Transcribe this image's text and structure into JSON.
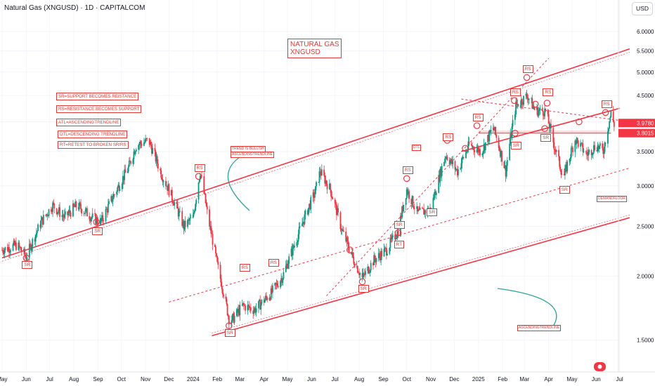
{
  "header": {
    "title": "Natural Gas (XNGUSD) · 1D · CAPITALCOM",
    "currency": "USD"
  },
  "annotations": {
    "title_line1": "NATURAL GAS",
    "title_line2": "XNGUSD",
    "legend": [
      "SR=SUPPORT BECOMES REISTANCE",
      "RS=RESISTANCE BECOMES SUPPORT",
      "ATL=ASCENDINGTRENDLINE",
      "DTL=DESCENDING TRENDLINE",
      "RT=RETEST TO BROKEN SR/RS"
    ],
    "trend_note_1": "TREND IS BULLISH",
    "trend_note_2": "ASCENDINGTRENDLINE",
    "atl_bottom": "ASCENDINGTRENDLINE",
    "demand_floor": "DEMANDFLOOR",
    "dtl": "DTL"
  },
  "markers": [
    {
      "label": "SR",
      "x": "2023-06-01",
      "y": 2.17,
      "pos": "below"
    },
    {
      "label": "SR",
      "x": "2023-08-30",
      "y": 2.53,
      "pos": "below"
    },
    {
      "label": "RS",
      "x": "2024-01-08",
      "y": 3.13,
      "pos": "above"
    },
    {
      "label": "SR",
      "x": "2024-02-16",
      "y": 1.6,
      "pos": "below"
    },
    {
      "label": "RS",
      "x": "2024-03-06",
      "y": 2.0,
      "pos": "above"
    },
    {
      "label": "RS",
      "x": "2024-04-12",
      "y": 2.05,
      "pos": "above"
    },
    {
      "label": "SR",
      "x": "2024-08-05",
      "y": 1.95,
      "pos": "below"
    },
    {
      "label": "SR",
      "x": "2024-09-20",
      "y": 2.43,
      "pos": "above"
    },
    {
      "label": "RT",
      "x": "2024-09-20",
      "y": 2.38,
      "pos": "below"
    },
    {
      "label": "RS",
      "x": "2024-10-01",
      "y": 3.1,
      "pos": "above"
    },
    {
      "label": "SR",
      "x": "2024-11-01",
      "y": 2.75,
      "pos": "below"
    },
    {
      "label": "RS",
      "x": "2024-11-22",
      "y": 3.6,
      "pos": "above"
    },
    {
      "label": "RS",
      "x": "2024-12-30",
      "y": 3.93,
      "pos": "above"
    },
    {
      "label": "RS",
      "x": "2025-02-16",
      "y": 4.4,
      "pos": "above"
    },
    {
      "label": "SR",
      "x": "2025-02-17",
      "y": 3.72,
      "pos": "below"
    },
    {
      "label": "RS",
      "x": "2025-03-04",
      "y": 4.88,
      "pos": "above"
    },
    {
      "label": "SR",
      "x": "2025-03-27",
      "y": 3.85,
      "pos": "below"
    },
    {
      "label": "RS",
      "x": "2025-03-30",
      "y": 4.4,
      "pos": "above"
    },
    {
      "label": "SR",
      "x": "2025-04-20",
      "y": 3.05,
      "pos": "below"
    },
    {
      "label": "RS",
      "x": "2025-06-13",
      "y": 4.18,
      "pos": "above"
    }
  ],
  "chart_data": {
    "type": "candlestick",
    "title": "Natural Gas (XNGUSD) · 1D · CAPITALCOM",
    "ylabel": "USD",
    "y_scale": "log",
    "ylim": [
      1.3,
      6.45
    ],
    "xlim": [
      "2023-05-01",
      "2025-07-14"
    ],
    "x_ticks": [
      "May",
      "Jun",
      "Jul",
      "Aug",
      "Sep",
      "Oct",
      "Nov",
      "Dec",
      "2024",
      "Feb",
      "Mar",
      "Apr",
      "May",
      "Jun",
      "Jul",
      "Aug",
      "Sep",
      "Oct",
      "Nov",
      "Dec",
      "2025",
      "Feb",
      "Mar",
      "Apr",
      "May",
      "Jun",
      "Jul"
    ],
    "x_tick_dates": [
      "2023-05-01",
      "2023-06-01",
      "2023-07-01",
      "2023-08-01",
      "2023-09-01",
      "2023-10-01",
      "2023-11-01",
      "2023-12-01",
      "2024-01-01",
      "2024-02-01",
      "2024-03-01",
      "2024-04-01",
      "2024-05-01",
      "2024-06-01",
      "2024-07-01",
      "2024-08-01",
      "2024-09-01",
      "2024-10-01",
      "2024-11-01",
      "2024-12-01",
      "2025-01-01",
      "2025-02-01",
      "2025-03-01",
      "2025-04-01",
      "2025-05-01",
      "2025-06-01",
      "2025-07-01"
    ],
    "y_ticks": [
      1.5,
      2.0,
      2.5,
      3.0,
      3.5,
      4.0,
      4.5,
      5.0,
      5.5,
      6.0
    ],
    "y_tick_labels": [
      "1.5000",
      "2.0000",
      "2.5000",
      "3.0000",
      "3.5000",
      "4.0000",
      "4.5000",
      "5.0000",
      "5.5000",
      "6.0000"
    ],
    "price_labels": [
      {
        "value": 3.978,
        "text": "3.9780",
        "color": "#f23645"
      },
      {
        "value": 3.8015,
        "text": "3.8015",
        "color": "#f23645"
      }
    ],
    "price_path": [
      [
        "2023-05-01",
        2.25
      ],
      [
        "2023-05-20",
        2.3
      ],
      [
        "2023-06-01",
        2.18
      ],
      [
        "2023-06-20",
        2.55
      ],
      [
        "2023-07-05",
        2.75
      ],
      [
        "2023-07-20",
        2.6
      ],
      [
        "2023-08-05",
        2.75
      ],
      [
        "2023-08-25",
        2.6
      ],
      [
        "2023-09-05",
        2.55
      ],
      [
        "2023-09-25",
        2.95
      ],
      [
        "2023-10-10",
        3.25
      ],
      [
        "2023-10-20",
        3.6
      ],
      [
        "2023-11-05",
        3.68
      ],
      [
        "2023-11-20",
        3.2
      ],
      [
        "2023-12-05",
        2.85
      ],
      [
        "2023-12-20",
        2.5
      ],
      [
        "2024-01-01",
        2.6
      ],
      [
        "2024-01-10",
        3.2
      ],
      [
        "2024-01-20",
        2.6
      ],
      [
        "2024-02-01",
        2.1
      ],
      [
        "2024-02-17",
        1.62
      ],
      [
        "2024-03-05",
        1.75
      ],
      [
        "2024-03-20",
        1.72
      ],
      [
        "2024-04-10",
        1.85
      ],
      [
        "2024-04-25",
        2.0
      ],
      [
        "2024-05-10",
        2.3
      ],
      [
        "2024-05-25",
        2.65
      ],
      [
        "2024-06-05",
        2.9
      ],
      [
        "2024-06-12",
        3.2
      ],
      [
        "2024-06-25",
        2.95
      ],
      [
        "2024-07-10",
        2.45
      ],
      [
        "2024-07-25",
        2.15
      ],
      [
        "2024-08-05",
        1.98
      ],
      [
        "2024-08-20",
        2.15
      ],
      [
        "2024-09-05",
        2.25
      ],
      [
        "2024-09-20",
        2.45
      ],
      [
        "2024-10-01",
        2.95
      ],
      [
        "2024-10-15",
        2.65
      ],
      [
        "2024-11-01",
        2.7
      ],
      [
        "2024-11-20",
        3.45
      ],
      [
        "2024-12-05",
        3.2
      ],
      [
        "2024-12-20",
        3.6
      ],
      [
        "2025-01-05",
        3.5
      ],
      [
        "2025-01-20",
        3.9
      ],
      [
        "2025-02-05",
        3.2
      ],
      [
        "2025-02-18",
        4.3
      ],
      [
        "2025-03-05",
        4.5
      ],
      [
        "2025-03-15",
        4.2
      ],
      [
        "2025-03-28",
        4.2
      ],
      [
        "2025-04-08",
        3.6
      ],
      [
        "2025-04-20",
        3.1
      ],
      [
        "2025-05-05",
        3.7
      ],
      [
        "2025-05-20",
        3.45
      ],
      [
        "2025-06-01",
        3.6
      ],
      [
        "2025-06-10",
        3.5
      ],
      [
        "2025-06-20",
        4.15
      ],
      [
        "2025-06-24",
        3.95
      ]
    ],
    "lines": [
      {
        "name": "upper-channel",
        "style": "solid",
        "points": [
          [
            "2023-05-01",
            2.17
          ],
          [
            "2025-07-14",
            5.55
          ]
        ]
      },
      {
        "name": "atl-main",
        "style": "solid",
        "points": [
          [
            "2024-01-25",
            1.53
          ],
          [
            "2025-07-14",
            2.6
          ]
        ]
      },
      {
        "name": "atl-dashed",
        "style": "dashed",
        "points": [
          [
            "2023-12-01",
            1.78
          ],
          [
            "2025-07-14",
            3.25
          ]
        ]
      },
      {
        "name": "steep-atl",
        "style": "dashed",
        "points": [
          [
            "2024-06-20",
            1.83
          ],
          [
            "2025-04-01",
            5.32
          ]
        ]
      },
      {
        "name": "dtl",
        "style": "dashed",
        "points": [
          [
            "2024-12-10",
            4.43
          ],
          [
            "2025-07-14",
            4.0
          ]
        ]
      },
      {
        "name": "mid-atl",
        "style": "solid",
        "points": [
          [
            "2024-12-10",
            3.5
          ],
          [
            "2025-07-01",
            4.25
          ]
        ]
      },
      {
        "name": "demand-floor",
        "style": "thin",
        "points": [
          [
            "2025-01-01",
            3.8
          ],
          [
            "2025-06-20",
            3.8
          ]
        ]
      }
    ],
    "circles": [
      [
        "2023-06-01",
        2.17
      ],
      [
        "2023-08-30",
        2.55
      ],
      [
        "2024-01-08",
        3.13
      ],
      [
        "2024-02-16",
        1.6
      ],
      [
        "2024-08-05",
        1.95
      ],
      [
        "2024-07-20",
        2.25
      ],
      [
        "2024-09-20",
        2.43
      ],
      [
        "2024-10-01",
        3.1
      ],
      [
        "2024-11-22",
        3.68
      ],
      [
        "2024-12-15",
        3.55
      ],
      [
        "2024-12-30",
        3.93
      ],
      [
        "2025-02-16",
        4.4
      ],
      [
        "2025-02-17",
        3.8
      ],
      [
        "2025-03-04",
        4.88
      ],
      [
        "2025-03-15",
        4.33
      ],
      [
        "2025-03-27",
        3.88
      ],
      [
        "2025-03-30",
        4.35
      ],
      [
        "2025-05-10",
        4.0
      ],
      [
        "2025-06-13",
        4.17
      ]
    ]
  }
}
